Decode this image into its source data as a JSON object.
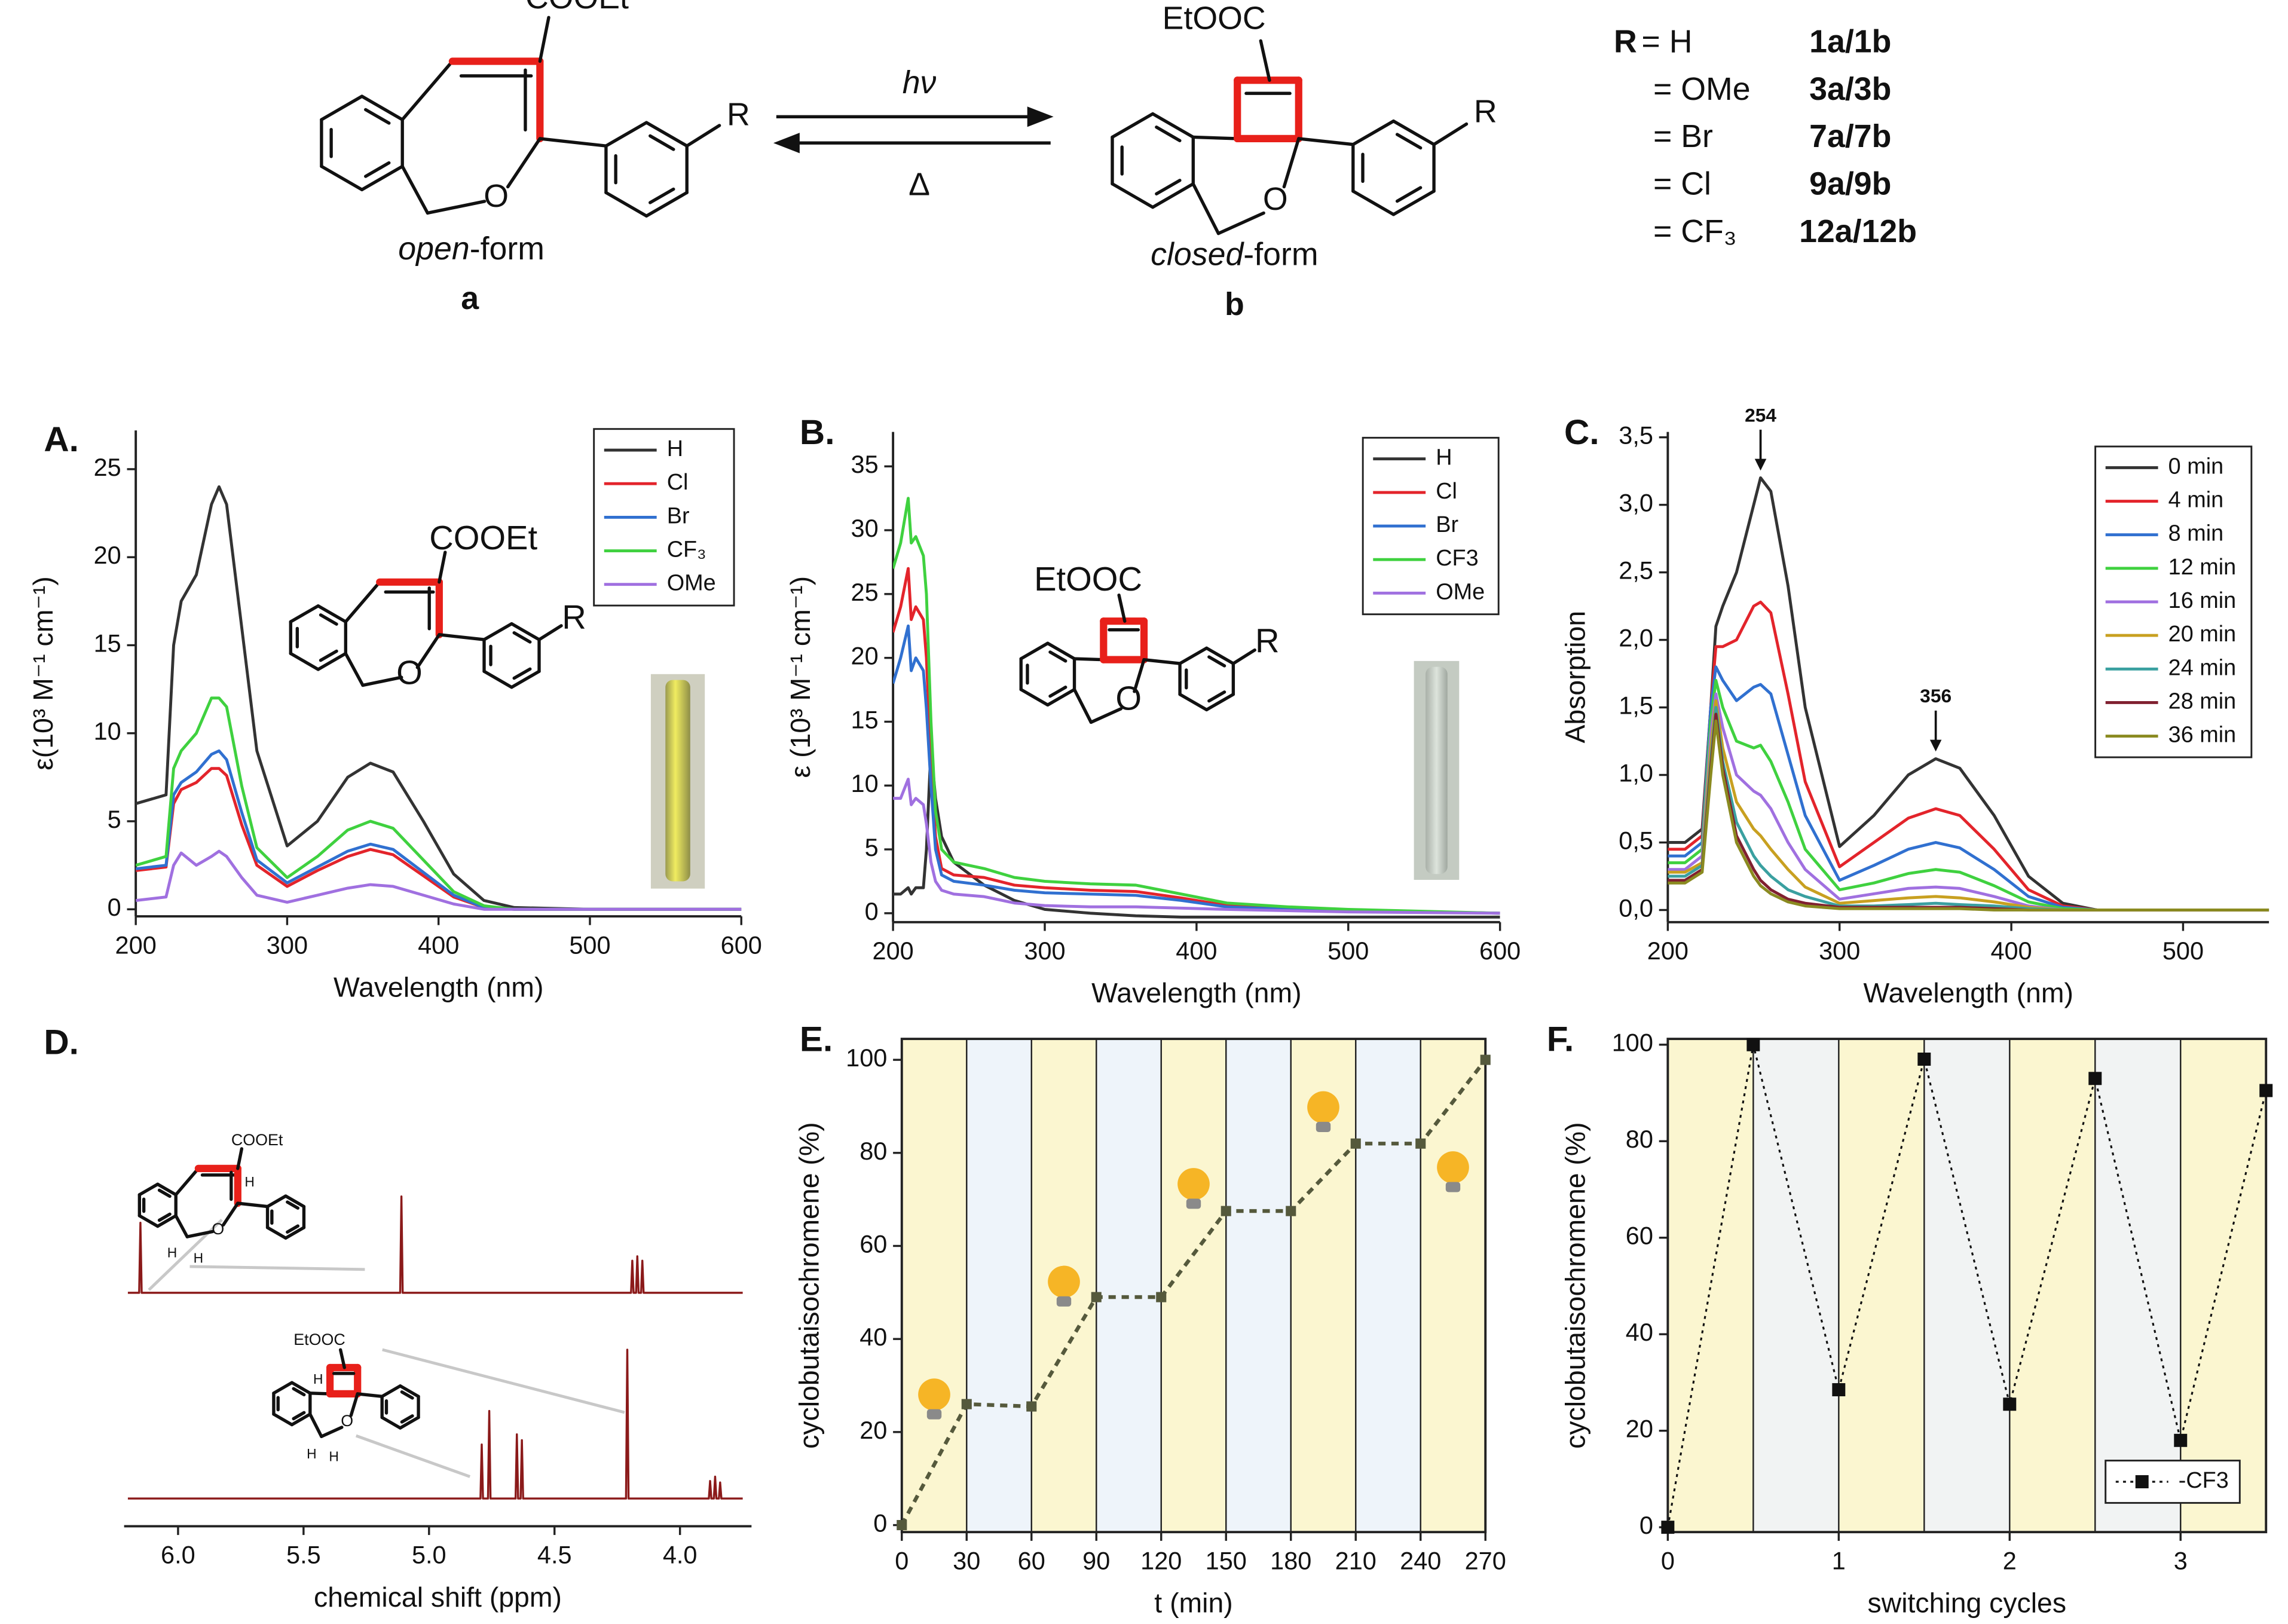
{
  "scheme": {
    "open_structure": {
      "acid": "COOEt",
      "o": "O",
      "r": "R"
    },
    "closed_structure": {
      "acid": "EtOOC",
      "o": "O",
      "r": "R"
    },
    "open_form": [
      "open",
      "-form"
    ],
    "open_id": "a",
    "forward": "hν",
    "backward": "Δ",
    "closed_form": [
      "closed",
      "-form"
    ],
    "closed_id": "b",
    "r_symbol": "R",
    "substituents": [
      {
        "group": "= H",
        "compounds": "1a/1b"
      },
      {
        "group": "= OMe",
        "compounds": "3a/3b"
      },
      {
        "group": "= Br",
        "compounds": "7a/7b"
      },
      {
        "group": "= Cl",
        "compounds": "9a/9b"
      },
      {
        "group": "= CF₃",
        "compounds": "12a/12b"
      }
    ]
  },
  "chart_data": [
    {
      "type": "line",
      "label": "A.",
      "xlabel": "Wavelength (nm)",
      "ylabel": "ε(10³ M⁻¹ cm⁻¹)",
      "xlim": [
        200,
        600
      ],
      "ylim": [
        -0.4,
        27.2
      ],
      "xticks": [
        200,
        300,
        400,
        500,
        600
      ],
      "yticks": [
        0,
        5,
        10,
        15,
        20,
        25
      ],
      "legend": "top-right",
      "structure": {
        "acid": "COOEt",
        "o": "O",
        "r": "R"
      },
      "x": [
        200,
        220,
        225,
        230,
        240,
        250,
        255,
        260,
        270,
        280,
        300,
        320,
        340,
        355,
        370,
        390,
        410,
        430,
        450,
        500,
        600
      ],
      "series": [
        {
          "name": "H",
          "color": "#333333",
          "values": [
            6,
            6.5,
            15,
            17.5,
            19,
            23,
            24,
            23,
            16,
            9,
            3.6,
            5,
            7.5,
            8.3,
            7.8,
            5,
            2,
            0.5,
            0.1,
            0,
            0
          ]
        },
        {
          "name": "Cl",
          "color": "#e3242b",
          "values": [
            2.2,
            2.4,
            6,
            6.8,
            7.2,
            8,
            8,
            7.6,
            4.8,
            2.5,
            1.3,
            2.2,
            3,
            3.4,
            3.1,
            1.9,
            0.7,
            0.1,
            0,
            0,
            0
          ]
        },
        {
          "name": "Br",
          "color": "#3070d0",
          "values": [
            2.3,
            2.5,
            6.5,
            7.2,
            7.8,
            8.8,
            9,
            8.5,
            5.5,
            2.8,
            1.5,
            2.4,
            3.3,
            3.7,
            3.4,
            2.1,
            0.8,
            0.1,
            0,
            0,
            0
          ]
        },
        {
          "name": "CF₃",
          "color": "#3fd13f",
          "values": [
            2.5,
            3,
            8,
            9,
            10,
            12,
            12,
            11.5,
            7,
            3.5,
            1.8,
            3,
            4.5,
            5,
            4.6,
            2.8,
            1,
            0.2,
            0,
            0,
            0
          ]
        },
        {
          "name": "OMe",
          "color": "#a070e0",
          "values": [
            0.5,
            0.7,
            2.5,
            3.2,
            2.5,
            3,
            3.3,
            3,
            1.8,
            0.8,
            0.4,
            0.8,
            1.2,
            1.4,
            1.3,
            0.8,
            0.3,
            0,
            0,
            0,
            0
          ]
        }
      ]
    },
    {
      "type": "line",
      "label": "B.",
      "xlabel": "Wavelength (nm)",
      "ylabel": "ε (10³ M⁻¹ cm⁻¹)",
      "xlim": [
        200,
        600
      ],
      "ylim": [
        -0.7,
        37.7
      ],
      "xticks": [
        200,
        300,
        400,
        500,
        600
      ],
      "yticks": [
        0,
        5,
        10,
        15,
        20,
        25,
        30,
        35
      ],
      "legend": "top-right",
      "structure": {
        "acid": "EtOOC",
        "o": "O",
        "r": "R"
      },
      "x": [
        200,
        205,
        210,
        212,
        215,
        220,
        222,
        225,
        228,
        232,
        240,
        260,
        280,
        300,
        330,
        360,
        390,
        420,
        460,
        500,
        600
      ],
      "series": [
        {
          "name": "H",
          "color": "#333333",
          "values": [
            1.5,
            1.5,
            2,
            1.5,
            2,
            2,
            5,
            13,
            9,
            6,
            4,
            2.2,
            1,
            0.3,
            0,
            -0.2,
            -0.3,
            -0.3,
            -0.3,
            -0.3,
            -0.3
          ]
        },
        {
          "name": "Cl",
          "color": "#e3242b",
          "values": [
            22,
            24,
            27,
            23,
            24,
            23,
            20,
            12,
            6,
            3.5,
            3,
            2.8,
            2.2,
            2,
            1.8,
            1.7,
            1.2,
            0.6,
            0.4,
            0.2,
            0
          ]
        },
        {
          "name": "Br",
          "color": "#3070d0",
          "values": [
            18,
            20,
            22.5,
            19,
            20,
            19,
            16,
            10,
            5,
            3,
            2.5,
            2.2,
            1.8,
            1.6,
            1.5,
            1.4,
            1,
            0.5,
            0.3,
            0.2,
            0
          ]
        },
        {
          "name": "CF3",
          "color": "#3fd13f",
          "values": [
            27,
            29,
            32.5,
            29,
            29.5,
            28,
            25,
            15,
            8,
            5,
            4,
            3.5,
            2.8,
            2.5,
            2.3,
            2.2,
            1.5,
            0.8,
            0.5,
            0.3,
            0
          ]
        },
        {
          "name": "OMe",
          "color": "#a070e0",
          "values": [
            9,
            9,
            10.5,
            8.5,
            9,
            8.5,
            7,
            4,
            2.5,
            1.8,
            1.5,
            1.3,
            0.8,
            0.6,
            0.5,
            0.5,
            0.4,
            0.3,
            0.2,
            0.1,
            0
          ]
        }
      ]
    },
    {
      "type": "line",
      "label": "C.",
      "xlabel": "Wavelength (nm)",
      "ylabel": "Absorption",
      "xlim": [
        200,
        550
      ],
      "ylim": [
        -0.09,
        3.54
      ],
      "xticks": [
        200,
        300,
        400,
        500
      ],
      "yticks": [
        {
          "value": 0,
          "label": "0,0"
        },
        {
          "value": 0.5,
          "label": "0,5"
        },
        {
          "value": 1,
          "label": "1,0"
        },
        {
          "value": 1.5,
          "label": "1,5"
        },
        {
          "value": 2,
          "label": "2,0"
        },
        {
          "value": 2.5,
          "label": "2,5"
        },
        {
          "value": 3,
          "label": "3,0"
        },
        {
          "value": 3.5,
          "label": "3,5"
        }
      ],
      "legend": "top-right",
      "annotations": [
        {
          "label": "254",
          "x": 254
        },
        {
          "label": "356",
          "x": 356
        }
      ],
      "x": [
        200,
        210,
        220,
        225,
        228,
        232,
        240,
        250,
        254,
        260,
        270,
        280,
        300,
        320,
        340,
        356,
        370,
        390,
        410,
        430,
        450,
        500,
        550
      ],
      "series": [
        {
          "name": "0 min",
          "color": "#333333",
          "values": [
            0.5,
            0.5,
            0.6,
            1.5,
            2.1,
            2.25,
            2.5,
            3.0,
            3.2,
            3.1,
            2.4,
            1.5,
            0.47,
            0.7,
            1.0,
            1.12,
            1.05,
            0.7,
            0.25,
            0.05,
            0,
            0,
            0
          ]
        },
        {
          "name": "4 min",
          "color": "#e3242b",
          "values": [
            0.45,
            0.45,
            0.55,
            1.5,
            1.95,
            1.95,
            2.0,
            2.25,
            2.28,
            2.2,
            1.6,
            0.95,
            0.32,
            0.5,
            0.68,
            0.75,
            0.7,
            0.45,
            0.15,
            0.03,
            0,
            0,
            0
          ]
        },
        {
          "name": "8 min",
          "color": "#3070d0",
          "values": [
            0.4,
            0.4,
            0.5,
            1.5,
            1.8,
            1.7,
            1.55,
            1.65,
            1.67,
            1.6,
            1.15,
            0.7,
            0.22,
            0.33,
            0.45,
            0.5,
            0.46,
            0.3,
            0.1,
            0.02,
            0,
            0,
            0
          ]
        },
        {
          "name": "12 min",
          "color": "#3fd13f",
          "values": [
            0.35,
            0.35,
            0.45,
            1.4,
            1.7,
            1.5,
            1.25,
            1.2,
            1.22,
            1.1,
            0.8,
            0.45,
            0.15,
            0.2,
            0.27,
            0.3,
            0.28,
            0.18,
            0.06,
            0.01,
            0,
            0,
            0
          ]
        },
        {
          "name": "16 min",
          "color": "#a070e0",
          "values": [
            0.3,
            0.3,
            0.4,
            1.3,
            1.6,
            1.35,
            1.0,
            0.88,
            0.85,
            0.75,
            0.5,
            0.3,
            0.08,
            0.12,
            0.16,
            0.17,
            0.16,
            0.1,
            0.03,
            0,
            0,
            0,
            0
          ]
        },
        {
          "name": "20 min",
          "color": "#c8a020",
          "values": [
            0.28,
            0.28,
            0.35,
            1.2,
            1.55,
            1.2,
            0.8,
            0.6,
            0.55,
            0.45,
            0.3,
            0.17,
            0.05,
            0.07,
            0.09,
            0.1,
            0.09,
            0.06,
            0.02,
            0,
            0,
            0,
            0
          ]
        },
        {
          "name": "24 min",
          "color": "#3aa0a0",
          "values": [
            0.25,
            0.25,
            0.33,
            1.1,
            1.5,
            1.1,
            0.65,
            0.4,
            0.33,
            0.25,
            0.15,
            0.1,
            0.03,
            0.03,
            0.04,
            0.05,
            0.04,
            0.03,
            0.01,
            0,
            0,
            0,
            0
          ]
        },
        {
          "name": "28 min",
          "color": "#802030",
          "values": [
            0.22,
            0.22,
            0.3,
            1.05,
            1.45,
            1.05,
            0.55,
            0.3,
            0.22,
            0.15,
            0.08,
            0.05,
            0.02,
            0.02,
            0.02,
            0.02,
            0.02,
            0.01,
            0,
            0,
            0,
            0,
            0
          ]
        },
        {
          "name": "36 min",
          "color": "#8a8a20",
          "values": [
            0.2,
            0.2,
            0.28,
            1.0,
            1.4,
            1.0,
            0.5,
            0.25,
            0.18,
            0.12,
            0.06,
            0.03,
            0.01,
            0.01,
            0.01,
            0.01,
            0.01,
            0,
            0,
            0,
            0,
            0,
            0
          ]
        }
      ]
    },
    {
      "type": "spectrum",
      "label": "D.",
      "xlabel": "chemical shift (ppm)",
      "xlim": [
        6.215,
        3.715
      ],
      "xticks": [
        {
          "value": 6,
          "label": "6.0"
        },
        {
          "value": 5.5,
          "label": "5.5"
        },
        {
          "value": 5,
          "label": "5.0"
        },
        {
          "value": 4.5,
          "label": "4.5"
        },
        {
          "value": 4,
          "label": "4.0"
        }
      ],
      "structures": [
        {
          "acid": "COOEt",
          "o": "O",
          "h": "H"
        },
        {
          "acid": "EtOOC",
          "o": "O",
          "h": "H"
        }
      ],
      "series": [
        {
          "color": "#8b1a1a",
          "x": [
            6.2,
            6.155,
            6.15,
            6.145,
            5.115,
            5.11,
            5.105,
            4.195,
            4.19,
            4.185,
            4.175,
            4.17,
            4.165,
            4.155,
            4.15,
            4.145,
            3.75
          ],
          "values": [
            0,
            0,
            48,
            0,
            0,
            66,
            0,
            0,
            22,
            0,
            0,
            25,
            0,
            0,
            22,
            0,
            0
          ]
        },
        {
          "color": "#8b1a1a",
          "x": [
            6.2,
            4.795,
            4.79,
            4.785,
            4.765,
            4.76,
            4.755,
            4.655,
            4.65,
            4.645,
            4.635,
            4.63,
            4.625,
            4.215,
            4.21,
            4.205,
            3.885,
            3.88,
            3.875,
            3.865,
            3.86,
            3.855,
            3.845,
            3.84,
            3.835,
            3.75
          ],
          "values": [
            0,
            0,
            37,
            0,
            0,
            60,
            0,
            0,
            44,
            0,
            0,
            40,
            0,
            0,
            102,
            0,
            0,
            12,
            0,
            0,
            15,
            0,
            0,
            11,
            0,
            0
          ]
        }
      ]
    },
    {
      "type": "line",
      "label": "E.",
      "xlabel": "t (min)",
      "ylabel": "cyclobutaisochromene (%)",
      "xlim": [
        0,
        270
      ],
      "ylim": [
        -1.5,
        104.5
      ],
      "xticks": [
        0,
        30,
        60,
        90,
        120,
        150,
        180,
        210,
        240,
        270
      ],
      "yticks": [
        0,
        20,
        40,
        60,
        80,
        100
      ],
      "band_colors": [
        "#fbf6d0",
        "#eef4fa"
      ],
      "marker": "square",
      "linestyle": "dashed",
      "x": [
        0,
        30,
        60,
        90,
        120,
        150,
        180,
        210,
        240,
        270
      ],
      "series": [
        {
          "color": "#55593c",
          "values": [
            0,
            26,
            25.5,
            49,
            49,
            67.5,
            67.5,
            82,
            82,
            100
          ]
        }
      ]
    },
    {
      "type": "line",
      "label": "F.",
      "xlabel": "switching cycles",
      "ylabel": "cyclobutaisochromene (%)",
      "xlim": [
        0,
        3.5
      ],
      "ylim": [
        -1,
        101.2
      ],
      "xticks": [
        0,
        1,
        2,
        3
      ],
      "yticks": [
        0,
        20,
        40,
        60,
        80,
        100
      ],
      "band_colors": [
        "#fbf6d0",
        "#f1f3f3"
      ],
      "marker": "square",
      "linestyle": "dotted",
      "legend": "bottom-right",
      "x": [
        0,
        0.5,
        1,
        1.5,
        2,
        2.5,
        3,
        3.5
      ],
      "series": [
        {
          "name": "-CF3",
          "color": "#111111",
          "values": [
            0,
            100,
            28.5,
            97,
            25.5,
            93,
            18,
            90.5
          ]
        }
      ]
    }
  ]
}
